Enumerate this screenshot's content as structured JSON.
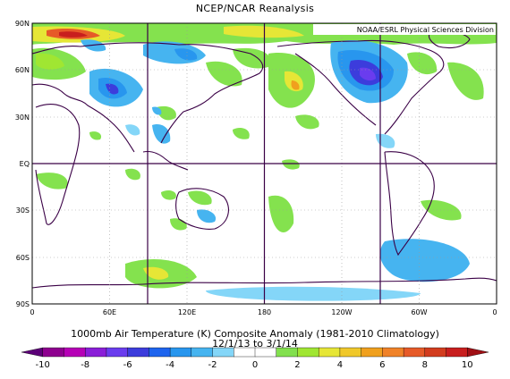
{
  "header": {
    "title": "NCEP/NCAR Reanalysis"
  },
  "credit": "NOAA/ESRL Physical Sciences Division",
  "latitude_labels": [
    "90N",
    "60N",
    "30N",
    "EQ",
    "30S",
    "60S",
    "90S"
  ],
  "longitude_labels": [
    "0",
    "60E",
    "120E",
    "180",
    "120W",
    "60W",
    "0"
  ],
  "caption": {
    "line1": "1000mb Air Temperature (K) Composite Anomaly (1981-2010 Climatology)",
    "line2": "12/1/13 to 3/1/14"
  },
  "colorbar": {
    "labels": [
      "-10",
      "-8",
      "-6",
      "-4",
      "-2",
      "0",
      "2",
      "4",
      "6",
      "8",
      "10"
    ],
    "colors": [
      "#5c0078",
      "#8e008f",
      "#b600b6",
      "#8a1ed8",
      "#6a3cee",
      "#3c3cdc",
      "#1e64ee",
      "#2896ee",
      "#46b4f0",
      "#84d6f8",
      "#ffffff",
      "#ffffff",
      "#82e04e",
      "#a0e632",
      "#e6e636",
      "#f0c82a",
      "#f0a01e",
      "#f08228",
      "#e65a28",
      "#d23c1e",
      "#c81e1e",
      "#a00f14"
    ]
  }
}
